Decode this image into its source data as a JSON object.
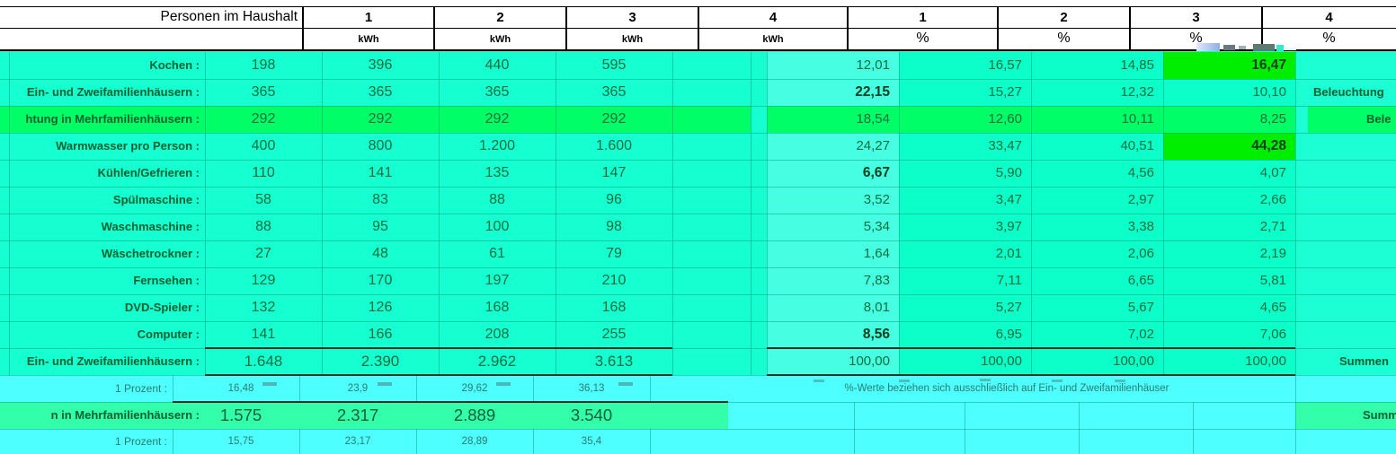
{
  "header": {
    "title": "Personen im Haushalt",
    "kwh_cols": [
      "1",
      "2",
      "3",
      "4"
    ],
    "kwh_unit": "kWh",
    "pct_cols": [
      "1",
      "2",
      "3",
      "4"
    ],
    "pct_unit": "%"
  },
  "note": "%-Werte beziehen sich ausschließlich auf Ein- und Zweifamilienhäuser",
  "rows": [
    {
      "id": "kochen",
      "label": "Kochen :",
      "kwh": [
        "198",
        "396",
        "440",
        "595"
      ],
      "pct": [
        "12,01",
        "16,57",
        "14,85",
        "16,47"
      ],
      "pct_bold": [
        3
      ],
      "pct_green": [
        3
      ]
    },
    {
      "id": "beleuchtung-ezfh",
      "label": "Ein- und Zweifamilienhäusern :",
      "kwh": [
        "365",
        "365",
        "365",
        "365"
      ],
      "pct": [
        "22,15",
        "15,27",
        "12,32",
        "10,10"
      ],
      "pct_bold": [
        0
      ],
      "right_fragment": "Beleuchtung"
    },
    {
      "id": "beleuchtung-mfh",
      "label": "htung in Mehrfamilienhäusern :",
      "row_green": true,
      "kwh": [
        "292",
        "292",
        "292",
        "292"
      ],
      "pct": [
        "18,54",
        "12,60",
        "10,11",
        "8,25"
      ],
      "right_fragment": "Bele"
    },
    {
      "id": "warmwasser",
      "label": "Warmwasser pro Person :",
      "kwh": [
        "400",
        "800",
        "1.200",
        "1.600"
      ],
      "pct": [
        "24,27",
        "33,47",
        "40,51",
        "44,28"
      ],
      "pct_bold": [
        3
      ],
      "pct_green": [
        3
      ]
    },
    {
      "id": "kuehlen-gefrieren",
      "label": "Kühlen/Gefrieren :",
      "kwh": [
        "110",
        "141",
        "135",
        "147"
      ],
      "pct": [
        "6,67",
        "5,90",
        "4,56",
        "4,07"
      ],
      "pct_bold": [
        0
      ]
    },
    {
      "id": "spuelmaschine",
      "label": "Spülmaschine :",
      "kwh": [
        "58",
        "83",
        "88",
        "96"
      ],
      "pct": [
        "3,52",
        "3,47",
        "2,97",
        "2,66"
      ]
    },
    {
      "id": "waschmaschine",
      "label": "Waschmaschine :",
      "kwh": [
        "88",
        "95",
        "100",
        "98"
      ],
      "pct": [
        "5,34",
        "3,97",
        "3,38",
        "2,71"
      ]
    },
    {
      "id": "waeschetrockner",
      "label": "Wäschetrockner :",
      "kwh": [
        "27",
        "48",
        "61",
        "79"
      ],
      "pct": [
        "1,64",
        "2,01",
        "2,06",
        "2,19"
      ]
    },
    {
      "id": "fernsehen",
      "label": "Fernsehen :",
      "kwh": [
        "129",
        "170",
        "197",
        "210"
      ],
      "pct": [
        "7,83",
        "7,11",
        "6,65",
        "5,81"
      ]
    },
    {
      "id": "dvd-spieler",
      "label": "DVD-Spieler :",
      "kwh": [
        "132",
        "126",
        "168",
        "168"
      ],
      "pct": [
        "8,01",
        "5,27",
        "5,67",
        "4,65"
      ]
    },
    {
      "id": "computer",
      "label": "Computer :",
      "kwh": [
        "141",
        "166",
        "208",
        "255"
      ],
      "pct": [
        "8,56",
        "6,95",
        "7,02",
        "7,06"
      ],
      "pct_bold": [
        0
      ]
    },
    {
      "id": "summen-ezfh",
      "label": "Ein- und Zweifamilienhäusern :",
      "type": "sum",
      "kwh": [
        "1.648",
        "2.390",
        "2.962",
        "3.613"
      ],
      "pct": [
        "100,00",
        "100,00",
        "100,00",
        "100,00"
      ],
      "right_fragment": "Summen"
    },
    {
      "id": "prozent-1",
      "label": "1 Prozent :",
      "type": "prozent",
      "kwh": [
        "16,48",
        "23,9",
        "29,62",
        "36,13"
      ]
    },
    {
      "id": "summen-mfh",
      "label": "n in Mehrfamilienhäusern :",
      "type": "sum2",
      "kwh": [
        "1.575",
        "2.317",
        "2.889",
        "3.540"
      ],
      "right_fragment": "Summ"
    },
    {
      "id": "prozent-2",
      "label": "1 Prozent :",
      "type": "prozent",
      "kwh": [
        "15,75",
        "23,17",
        "28,89",
        "35,4"
      ]
    }
  ],
  "colors": {
    "base_bg": "#15ffd1",
    "pct1_bg": "#46ffe2",
    "pct_bg": "#0cffc9",
    "right_bg": "#1cffd4",
    "row_green": "#00ff66",
    "cell_green": "#00ee00",
    "prozent_bg": "#4dffff",
    "sum2_bg": "#33ffaa",
    "label_text": "#00602f",
    "number_text": "#0e6e3e",
    "bold_text": "#03401d",
    "muted_text": "#2b7d6e",
    "grid": "#009676",
    "header_border": "#000000"
  }
}
